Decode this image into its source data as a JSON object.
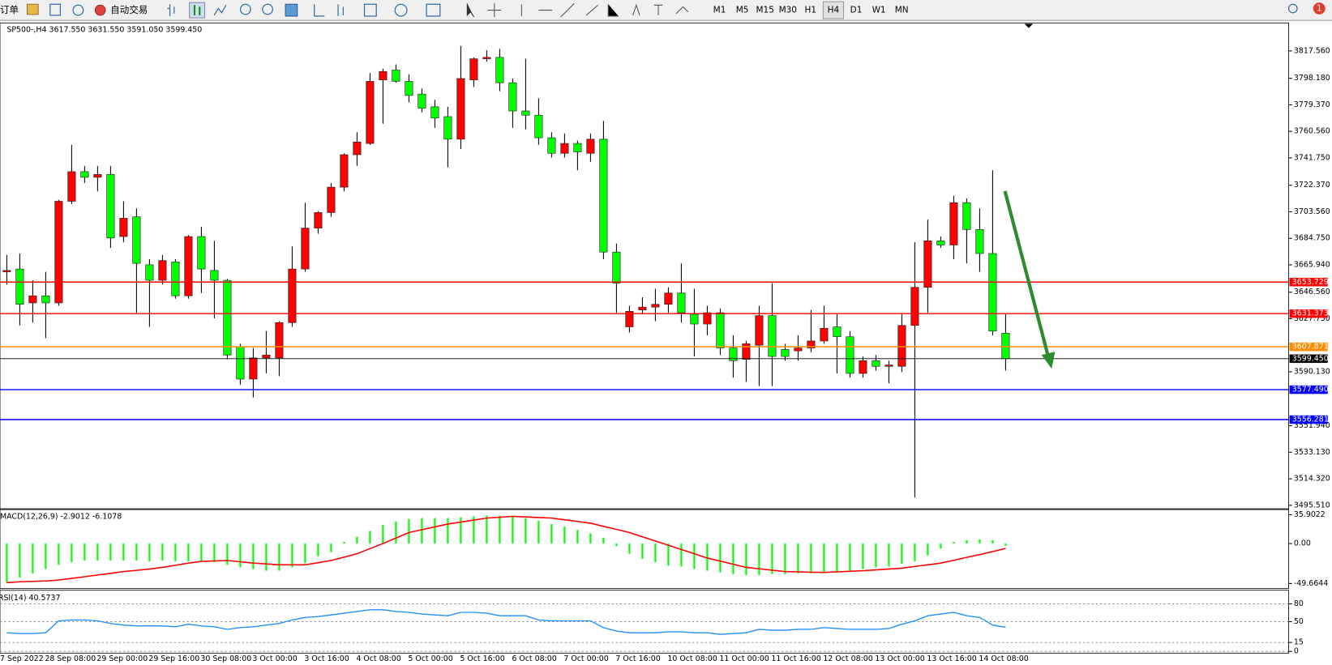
{
  "toolbar": {
    "order": "订单",
    "auto_trading": "自动交易",
    "timeframes": [
      "M1",
      "M5",
      "M15",
      "M30",
      "H1",
      "H4",
      "D1",
      "W1",
      "MN"
    ],
    "selected": "H4",
    "notifications": "1"
  },
  "chart_data": [
    {
      "type": "candlestick",
      "title": "SP500-,H4",
      "header_labels": [
        "3617.550",
        "3631.550",
        "3591.050",
        "3599.450"
      ],
      "first_date": "7 Sep 2022",
      "categories": [
        null,
        null,
        null,
        "28 Sep 08:00",
        null,
        null,
        null,
        "29 Sep 00:00",
        null,
        null,
        null,
        "29 Sep 16:00",
        null,
        null,
        null,
        "30 Sep 08:00",
        null,
        null,
        null,
        "3 Oct 00:00",
        null,
        null,
        null,
        "3 Oct 16:00",
        null,
        null,
        null,
        "4 Oct 08:00",
        null,
        null,
        null,
        "5 Oct 00:00",
        null,
        null,
        null,
        "5 Oct 16:00",
        null,
        null,
        null,
        "6 Oct 08:00",
        null,
        null,
        null,
        "7 Oct 00:00",
        null,
        null,
        null,
        "7 Oct 16:00",
        null,
        null,
        null,
        "10 Oct 08:00",
        null,
        null,
        null,
        "11 Oct 00:00",
        null,
        null,
        null,
        "11 Oct 16:00",
        null,
        null,
        null,
        "12 Oct 08:00",
        null,
        null,
        null,
        "13 Oct 00:00",
        null,
        null,
        null,
        "13 Oct 16:00",
        null,
        null,
        null,
        "14 Oct 08:00",
        null,
        null
      ],
      "open": [
        3661,
        3663,
        3639,
        3644,
        3639,
        3711,
        3732,
        3728,
        3730,
        3686,
        3700,
        3666,
        3655,
        3668,
        3644,
        3686,
        3662,
        3655,
        3608,
        3585,
        3600,
        3600,
        3625,
        3663,
        3692,
        3703,
        3721,
        3744,
        3752,
        3797,
        3804,
        3796,
        3787,
        3778,
        3771,
        3755,
        3797,
        3812,
        3813,
        3795,
        3775,
        3772,
        3756,
        3745,
        3752,
        3745,
        3755,
        3675,
        3622,
        3634,
        3636,
        3638,
        3646,
        3631,
        3624,
        3632,
        3607,
        3599,
        3609,
        3630,
        3606,
        3605,
        3607,
        3612,
        3622,
        3615,
        3589,
        3598,
        3594,
        3594,
        3623,
        3650,
        3683,
        3680,
        3710,
        3691,
        3674,
        3617.55
      ],
      "high": [
        3673,
        3674,
        3655,
        3661,
        3712,
        3751,
        3736,
        3736,
        3736,
        3711,
        3706,
        3670,
        3673,
        3670,
        3687,
        3693,
        3683,
        3656,
        3610,
        3607,
        3619,
        3626,
        3679,
        3710,
        3704,
        3724,
        3745,
        3760,
        3802,
        3805,
        3808,
        3801,
        3791,
        3783,
        3778,
        3821,
        3813,
        3818,
        3819,
        3798,
        3812,
        3784,
        3760,
        3759,
        3754,
        3759,
        3768,
        3681,
        3637,
        3643,
        3649,
        3650,
        3667,
        3649,
        3637,
        3635,
        3616,
        3612,
        3637,
        3653,
        3610,
        3616,
        3634,
        3637,
        3631,
        3619,
        3601,
        3602,
        3598,
        3632,
        3682,
        3698,
        3686,
        3715,
        3713,
        3706,
        3733,
        3631.55
      ],
      "low": [
        3652,
        3623,
        3625,
        3614,
        3637,
        3709,
        3724,
        3718,
        3678,
        3682,
        3632,
        3622,
        3652,
        3642,
        3642,
        3646,
        3628,
        3599,
        3581,
        3572,
        3589,
        3587,
        3622,
        3661,
        3688,
        3700,
        3718,
        3736,
        3751,
        3766,
        3795,
        3781,
        3774,
        3763,
        3735,
        3748,
        3792,
        3810,
        3789,
        3763,
        3762,
        3751,
        3742,
        3742,
        3733,
        3739,
        3670,
        3632,
        3618,
        3631,
        3626,
        3632,
        3625,
        3601,
        3616,
        3602,
        3586,
        3583,
        3580,
        3580,
        3598,
        3598,
        3604,
        3610,
        3589,
        3586,
        3586,
        3591,
        3582,
        3590,
        3501,
        3632,
        3678,
        3670,
        3667,
        3661,
        3616,
        3591.05
      ],
      "close": [
        3662,
        3638,
        3644,
        3639,
        3711,
        3732,
        3728,
        3730,
        3685,
        3699,
        3667,
        3655,
        3669,
        3644,
        3686,
        3663,
        3655,
        3602,
        3585,
        3600,
        3602,
        3625,
        3663,
        3692,
        3703,
        3721,
        3744,
        3753,
        3796,
        3803,
        3796,
        3786,
        3777,
        3770,
        3755,
        3798,
        3812,
        3813,
        3795,
        3775,
        3772,
        3756,
        3745,
        3752,
        3746,
        3755,
        3675,
        3653,
        3633,
        3636,
        3638,
        3646,
        3632,
        3624,
        3632,
        3607,
        3598,
        3610,
        3630,
        3601,
        3601,
        3607,
        3612,
        3621,
        3615,
        3589,
        3598,
        3594,
        3595,
        3623,
        3650,
        3683,
        3680,
        3710,
        3691,
        3674,
        3619,
        3599.45
      ],
      "up_color": "#ff0000",
      "down_color": "#00ff00",
      "ylim": [
        3493.7,
        3836.8
      ],
      "yticks": [
        {
          "value": 3817.56,
          "label": "3817.560"
        },
        {
          "value": 3798.18,
          "label": "3798.180"
        },
        {
          "value": 3779.37,
          "label": "3779.370"
        },
        {
          "value": 3760.56,
          "label": "3760.560"
        },
        {
          "value": 3741.75,
          "label": "3741.750"
        },
        {
          "value": 3722.37,
          "label": "3722.370"
        },
        {
          "value": 3703.56,
          "label": "3703.560"
        },
        {
          "value": 3684.75,
          "label": "3684.750"
        },
        {
          "value": 3665.94,
          "label": "3665.940"
        },
        {
          "value": 3646.56,
          "label": "3646.560"
        },
        {
          "value": 3627.75,
          "label": "3627.750"
        },
        {
          "value": 3590.13,
          "label": "3590.130"
        },
        {
          "value": 3551.94,
          "label": "3551.940"
        },
        {
          "value": 3533.13,
          "label": "3533.130"
        },
        {
          "value": 3514.32,
          "label": "3514.320"
        },
        {
          "value": 3495.51,
          "label": "3495.510"
        }
      ],
      "hlines": {
        "values": [
          3653.729,
          3631.373,
          3607.871,
          3599.45,
          3577.49,
          3556.281
        ],
        "value_labels": [
          "3653.729",
          "3631.373",
          "3607.871",
          "3599.450",
          "3577.490",
          "3556.281"
        ],
        "colors": [
          "#ff0000",
          "#ff0000",
          "#ff8c00",
          "#000000",
          "#0000ff",
          "#0000ff"
        ]
      }
    },
    {
      "type": "macd",
      "title": "MACD(12,26,9)",
      "histogram": {
        "color": "#00ff00",
        "values": [
          -48.6,
          -42.2,
          -37.0,
          -31.7,
          -26.4,
          -23.2,
          -21.1,
          -21.1,
          -21.1,
          -21.1,
          -21.1,
          -22.2,
          -21.1,
          -22.2,
          -22.2,
          -22.2,
          -23.2,
          -26.4,
          -29.6,
          -31.7,
          -33.8,
          -33.8,
          -29.6,
          -24.3,
          -15.8,
          -10.6,
          2.1,
          8.4,
          15.8,
          23.2,
          27.5,
          30.6,
          31.7,
          31.7,
          31.7,
          32.7,
          33.8,
          34.8,
          34.8,
          33.8,
          31.7,
          28.5,
          24.3,
          21.1,
          16.9,
          12.7,
          7.4,
          -3.2,
          -12.7,
          -19.0,
          -23.2,
          -27.5,
          -28.5,
          -31.7,
          -33.8,
          -35.9,
          -38.0,
          -39.1,
          -39.1,
          -38.0,
          -38.0,
          -37.0,
          -37.0,
          -35.9,
          -34.8,
          -33.8,
          -31.7,
          -29.6,
          -28.5,
          -25.3,
          -22.2,
          -14.8,
          -6.3,
          2.1,
          4.2,
          5.3,
          4.2,
          -2.9012
        ]
      },
      "signal": {
        "color": "#ff0000",
        "values": [
          -48.6,
          -47.5,
          -47.0,
          -46.5,
          -45.4,
          -43.3,
          -41.2,
          -39.1,
          -37.0,
          -34.8,
          -33.3,
          -31.7,
          -29.6,
          -27.0,
          -24.3,
          -22.2,
          -21.6,
          -21.1,
          -22.7,
          -24.3,
          -25.3,
          -26.4,
          -26.4,
          -26.4,
          -23.8,
          -21.1,
          -16.9,
          -12.7,
          -6.3,
          0.0,
          6.9,
          13.7,
          17.2,
          20.8,
          24.3,
          26.7,
          29.2,
          31.7,
          32.7,
          33.8,
          33.1,
          32.4,
          31.7,
          29.6,
          27.5,
          25.3,
          21.4,
          17.6,
          13.7,
          8.4,
          3.2,
          -2.1,
          -7.4,
          -12.7,
          -18.0,
          -21.8,
          -25.7,
          -29.6,
          -31.4,
          -33.1,
          -34.8,
          -35.2,
          -35.6,
          -35.9,
          -35.2,
          -34.5,
          -33.8,
          -32.7,
          -31.7,
          -30.6,
          -28.5,
          -26.4,
          -24.3,
          -20.8,
          -17.2,
          -13.7,
          -10.0,
          -6.1078
        ]
      },
      "ylim": [
        -54.9,
        41.2
      ],
      "yticks": [
        35.9022,
        {
          "value": 0,
          "label": "0.00"
        },
        -49.6644
      ]
    },
    {
      "type": "rsi",
      "title": "RSI(14)",
      "color": "#1e90ff",
      "values": [
        31.4,
        30.0,
        30.0,
        31.4,
        51.4,
        52.9,
        52.9,
        51.4,
        47.1,
        44.3,
        42.9,
        42.9,
        42.9,
        41.4,
        45.7,
        42.9,
        41.4,
        37.1,
        40.0,
        41.4,
        44.3,
        47.1,
        52.9,
        57.1,
        58.6,
        61.4,
        64.3,
        67.1,
        70.0,
        70.0,
        67.1,
        65.7,
        62.9,
        61.4,
        60.0,
        65.7,
        65.7,
        64.3,
        60.0,
        60.0,
        60.0,
        52.9,
        51.4,
        51.4,
        51.4,
        51.4,
        40.0,
        34.3,
        31.4,
        31.4,
        31.4,
        32.9,
        32.9,
        31.4,
        31.4,
        28.6,
        30.0,
        31.4,
        37.1,
        35.7,
        35.7,
        37.1,
        37.1,
        40.0,
        38.6,
        37.1,
        37.1,
        37.1,
        38.6,
        45.7,
        51.4,
        60.0,
        62.9,
        65.7,
        60.0,
        57.1,
        44.3,
        40.5737
      ],
      "ylim": [
        0,
        100
      ],
      "yticks": [
        80,
        50,
        15,
        0
      ]
    }
  ]
}
